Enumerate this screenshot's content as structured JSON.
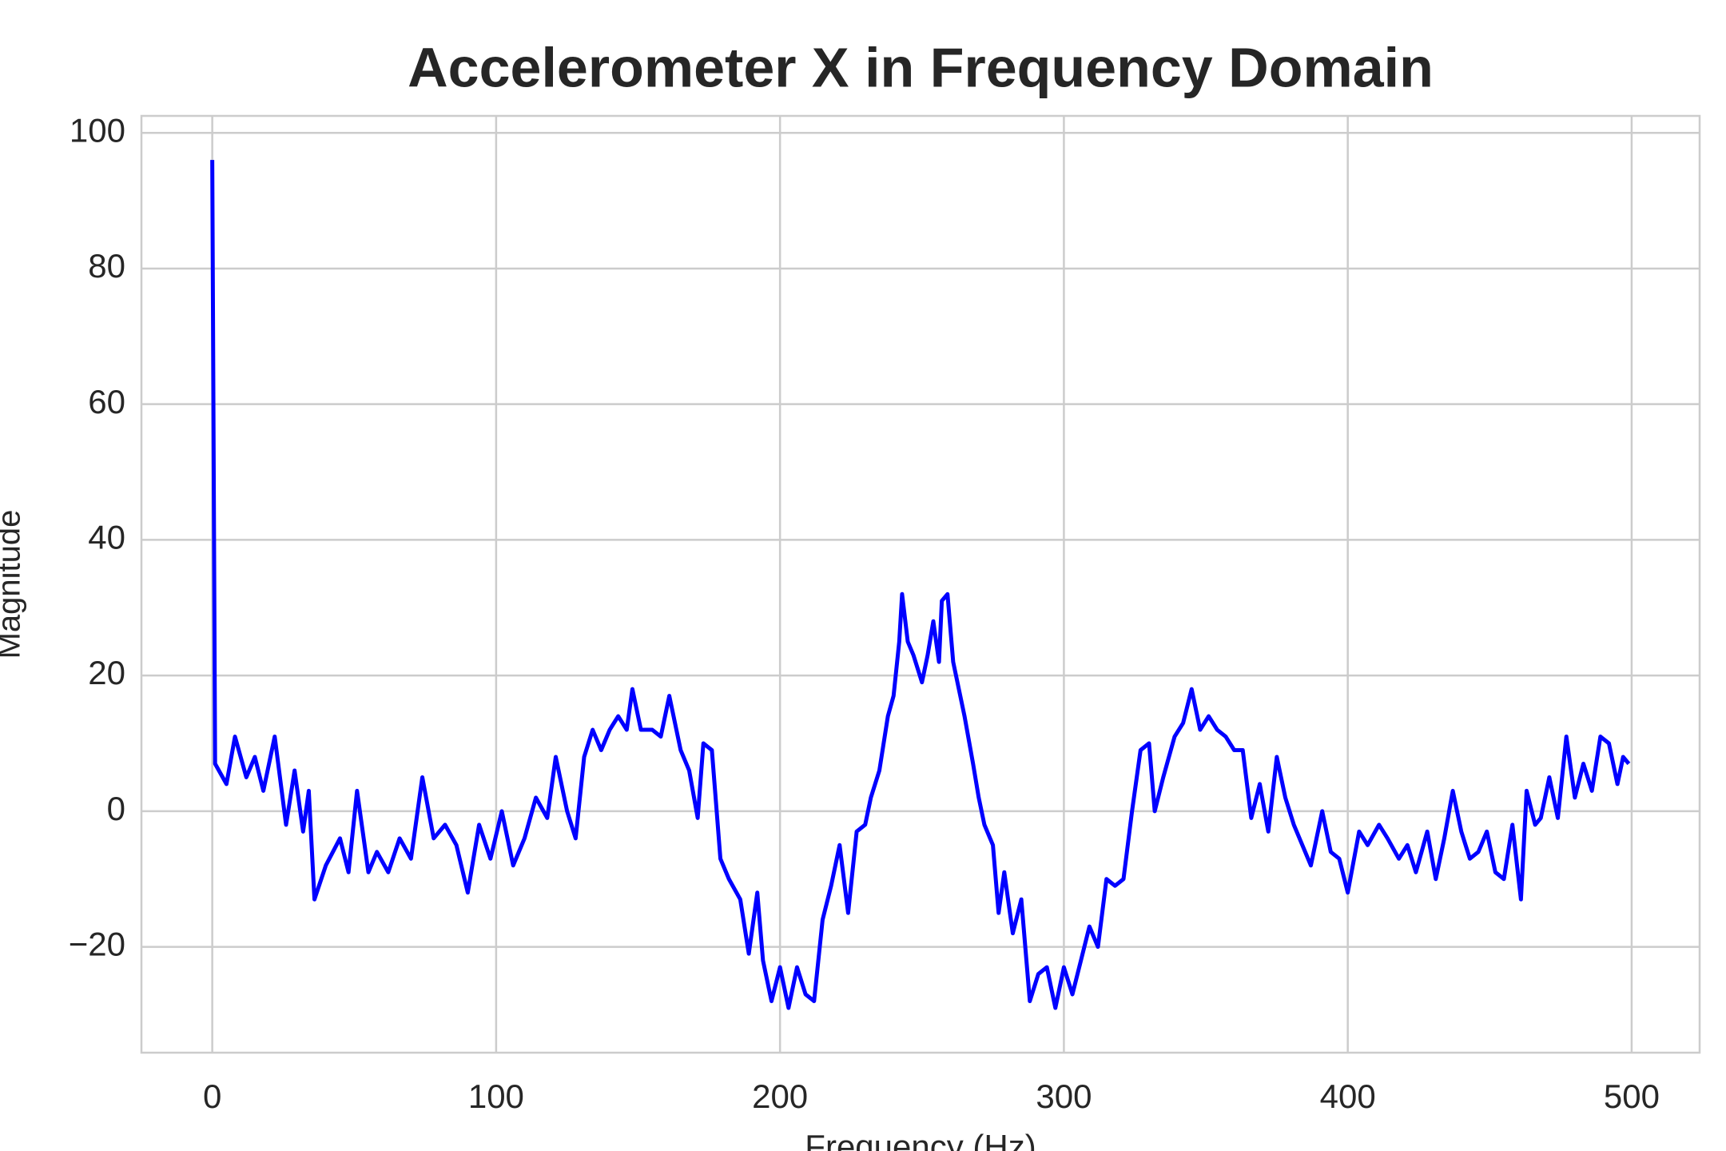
{
  "chart_data": {
    "type": "line",
    "title": "Accelerometer X in Frequency Domain",
    "xlabel": "Frequency (Hz)",
    "ylabel": "Magnitude",
    "x": [
      0,
      1,
      5,
      8,
      12,
      15,
      18,
      22,
      26,
      29,
      32,
      34,
      36,
      40,
      45,
      48,
      51,
      55,
      58,
      62,
      66,
      70,
      74,
      78,
      82,
      86,
      90,
      94,
      98,
      102,
      106,
      110,
      114,
      118,
      121,
      125,
      128,
      131,
      134,
      137,
      140,
      143,
      146,
      148,
      151,
      155,
      158,
      161,
      165,
      168,
      171,
      173,
      176,
      179,
      182,
      186,
      189,
      192,
      194,
      197,
      200,
      203,
      206,
      209,
      212,
      215,
      218,
      221,
      224,
      227,
      230,
      232,
      235,
      238,
      240,
      242,
      243,
      245,
      247,
      250,
      252,
      254,
      256,
      257,
      259,
      261,
      263,
      265,
      268,
      270,
      272,
      275,
      277,
      279,
      282,
      285,
      288,
      291,
      294,
      297,
      300,
      303,
      306,
      309,
      312,
      315,
      318,
      321,
      324,
      327,
      330,
      332,
      335,
      339,
      342,
      345,
      348,
      351,
      354,
      357,
      360,
      363,
      366,
      369,
      372,
      375,
      378,
      381,
      384,
      387,
      391,
      394,
      397,
      400,
      404,
      407,
      411,
      414,
      418,
      421,
      424,
      428,
      431,
      434,
      437,
      440,
      443,
      446,
      449,
      452,
      455,
      458,
      461,
      463,
      466,
      468,
      471,
      474,
      477,
      480,
      483,
      486,
      489,
      492,
      495,
      497,
      499
    ],
    "series": [
      {
        "color": "#0000ff",
        "values": [
          96,
          7,
          4,
          11,
          5,
          8,
          3,
          11,
          -2,
          6,
          -3,
          3,
          -13,
          -8,
          -4,
          -9,
          3,
          -9,
          -6,
          -9,
          -4,
          -7,
          5,
          -4,
          -2,
          -5,
          -12,
          -2,
          -7,
          0,
          -8,
          -4,
          2,
          -1,
          8,
          0,
          -4,
          8,
          12,
          9,
          12,
          14,
          12,
          18,
          12,
          12,
          11,
          17,
          9,
          6,
          -1,
          10,
          9,
          -7,
          -10,
          -13,
          -21,
          -12,
          -22,
          -28,
          -23,
          -29,
          -23,
          -27,
          -28,
          -16,
          -11,
          -5,
          -15,
          -3,
          -2,
          2,
          6,
          14,
          17,
          25,
          32,
          25,
          23,
          19,
          23,
          28,
          22,
          31,
          32,
          22,
          18,
          14,
          7,
          2,
          -2,
          -5,
          -15,
          -9,
          -18,
          -13,
          -28,
          -24,
          -23,
          -29,
          -23,
          -27,
          -22,
          -17,
          -20,
          -10,
          -11,
          -10,
          0,
          9,
          10,
          0,
          5,
          11,
          13,
          18,
          12,
          14,
          12,
          11,
          9,
          9,
          -1,
          4,
          -3,
          8,
          2,
          -2,
          -5,
          -8,
          0,
          -6,
          -7,
          -12,
          -3,
          -5,
          -2,
          -4,
          -7,
          -5,
          -9,
          -3,
          -10,
          -4,
          3,
          -3,
          -7,
          -6,
          -3,
          -9,
          -10,
          -2,
          -13,
          3,
          -2,
          -1,
          5,
          -1,
          11,
          2,
          7,
          3,
          11,
          10,
          4,
          8,
          7
        ]
      }
    ],
    "xlim": [
      -24.95,
      523.95
    ],
    "ylim": [
      -35.6,
      102.5
    ],
    "xticks": [
      0,
      100,
      200,
      300,
      400,
      500
    ],
    "yticks": [
      {
        "value": -20,
        "label": "−20"
      },
      0,
      20,
      40,
      60,
      80,
      100
    ],
    "grid": true
  }
}
